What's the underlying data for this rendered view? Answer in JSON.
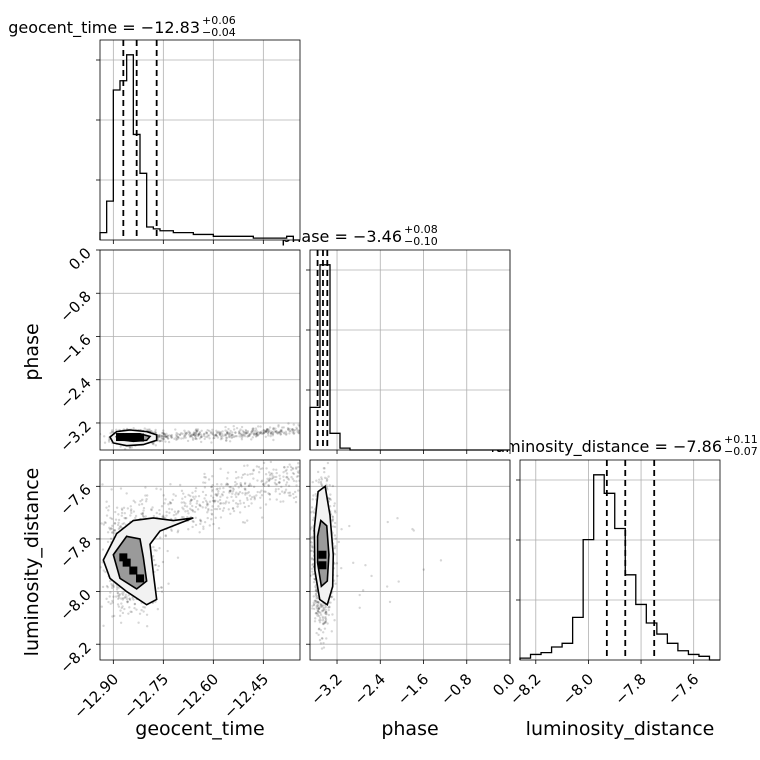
{
  "chart_data": {
    "type": "corner",
    "parameters": [
      {
        "name": "geocent_time",
        "label": "geocent_time",
        "title": "geocent_time = −12.83",
        "title_plus": "+0.06",
        "title_minus": "−0.04",
        "range": [
          -12.94,
          -12.34
        ],
        "ticks": [
          -12.9,
          -12.75,
          -12.6,
          -12.45
        ],
        "tick_labels": [
          "−12.90",
          "−12.75",
          "−12.60",
          "−12.45"
        ],
        "quantiles": [
          -12.87,
          -12.83,
          -12.77
        ],
        "hist_edges": [
          -12.94,
          -12.92,
          -12.9,
          -12.88,
          -12.86,
          -12.84,
          -12.82,
          -12.8,
          -12.78,
          -12.76,
          -12.74,
          -12.72,
          -12.7,
          -12.68,
          -12.66,
          -12.64,
          -12.62,
          -12.6,
          -12.58,
          -12.56,
          -12.54,
          -12.52,
          -12.5,
          -12.48,
          -12.46,
          -12.44,
          -12.42,
          -12.4,
          -12.38,
          -12.36,
          -12.34
        ],
        "hist_counts": [
          4,
          21,
          81,
          86,
          100,
          57,
          36,
          7,
          6,
          5,
          5,
          4,
          4,
          4,
          3,
          3,
          3,
          2,
          2,
          2,
          2,
          2,
          2,
          1,
          1,
          1,
          1,
          1,
          2,
          0
        ]
      },
      {
        "name": "phase",
        "label": "phase",
        "title": "phase = −3.46",
        "title_plus": "+0.08",
        "title_minus": "−0.10",
        "range": [
          -3.7,
          0.0
        ],
        "ticks": [
          -3.2,
          -2.4,
          -1.6,
          -0.8,
          0.0
        ],
        "tick_labels": [
          "−3.2",
          "−2.4",
          "−1.6",
          "−0.8",
          "0.0"
        ],
        "quantiles": [
          -3.56,
          -3.46,
          -3.38
        ],
        "hist_edges": [
          -3.7,
          -3.515,
          -3.33,
          -3.145,
          -2.96,
          -2.775,
          -2.59,
          -2.405,
          -2.22,
          -2.035,
          -1.85,
          -1.665,
          -1.48,
          -1.295,
          -1.11,
          -0.925,
          -0.74,
          -0.555,
          -0.37,
          -0.185,
          0.0
        ],
        "hist_counts": [
          23,
          100,
          9,
          1,
          0,
          0,
          0,
          0,
          0,
          0,
          0,
          0,
          0,
          0,
          0,
          0,
          0,
          0,
          0,
          0
        ]
      },
      {
        "name": "luminosity_distance",
        "label": "luminosity_distance",
        "title": "luminosity_distance = −7.86",
        "title_plus": "+0.11",
        "title_minus": "−0.07",
        "range": [
          -8.26,
          -7.5
        ],
        "ticks": [
          -8.2,
          -8.0,
          -7.8,
          -7.6
        ],
        "tick_labels": [
          "−8.2",
          "−8.0",
          "−7.8",
          "−7.6"
        ],
        "quantiles": [
          -7.93,
          -7.86,
          -7.75
        ],
        "hist_edges": [
          -8.26,
          -8.22,
          -8.18,
          -8.14,
          -8.1,
          -8.06,
          -8.02,
          -7.98,
          -7.94,
          -7.9,
          -7.86,
          -7.82,
          -7.78,
          -7.74,
          -7.7,
          -7.66,
          -7.62,
          -7.58,
          -7.54,
          -7.5
        ],
        "hist_counts": [
          1,
          3,
          4,
          7,
          9,
          23,
          65,
          100,
          90,
          71,
          46,
          30,
          20,
          14,
          9,
          5,
          3,
          2,
          0
        ]
      }
    ],
    "density_contours": [
      {
        "x_param": "geocent_time",
        "y_param": "phase",
        "levels": [
          [
            [
              -12.91,
              -3.46
            ],
            [
              -12.89,
              -3.36
            ],
            [
              -12.85,
              -3.33
            ],
            [
              -12.8,
              -3.36
            ],
            [
              -12.77,
              -3.42
            ],
            [
              -12.77,
              -3.52
            ],
            [
              -12.81,
              -3.6
            ],
            [
              -12.86,
              -3.62
            ],
            [
              -12.9,
              -3.57
            ]
          ],
          [
            [
              -12.89,
              -3.46
            ],
            [
              -12.86,
              -3.4
            ],
            [
              -12.82,
              -3.4
            ],
            [
              -12.79,
              -3.45
            ],
            [
              -12.8,
              -3.52
            ],
            [
              -12.84,
              -3.54
            ],
            [
              -12.88,
              -3.51
            ]
          ]
        ],
        "dense_cells": [
          [
            -12.88,
            -3.46
          ],
          [
            -12.86,
            -3.46
          ],
          [
            -12.84,
            -3.47
          ],
          [
            -12.82,
            -3.47
          ]
        ]
      },
      {
        "x_param": "phase",
        "y_param": "luminosity_distance",
        "levels": [
          [
            [
              -3.55,
              -7.62
            ],
            [
              -3.42,
              -7.6
            ],
            [
              -3.33,
              -7.71
            ],
            [
              -3.27,
              -7.86
            ],
            [
              -3.28,
              -7.98
            ],
            [
              -3.38,
              -8.05
            ],
            [
              -3.52,
              -8.03
            ],
            [
              -3.61,
              -7.92
            ],
            [
              -3.62,
              -7.76
            ]
          ],
          [
            [
              -3.5,
              -7.73
            ],
            [
              -3.39,
              -7.75
            ],
            [
              -3.35,
              -7.86
            ],
            [
              -3.38,
              -7.96
            ],
            [
              -3.49,
              -7.98
            ],
            [
              -3.56,
              -7.89
            ],
            [
              -3.56,
              -7.79
            ]
          ]
        ],
        "dense_cells": [
          [
            -3.47,
            -7.86
          ],
          [
            -3.47,
            -7.9
          ]
        ]
      },
      {
        "x_param": "geocent_time",
        "y_param": "luminosity_distance",
        "levels": [
          [
            [
              -12.93,
              -7.88
            ],
            [
              -12.89,
              -7.78
            ],
            [
              -12.84,
              -7.73
            ],
            [
              -12.78,
              -7.72
            ],
            [
              -12.72,
              -7.73
            ],
            [
              -12.66,
              -7.72
            ],
            [
              -12.7,
              -7.74
            ],
            [
              -12.76,
              -7.77
            ],
            [
              -12.79,
              -7.82
            ],
            [
              -12.78,
              -7.93
            ],
            [
              -12.77,
              -8.03
            ],
            [
              -12.8,
              -8.05
            ],
            [
              -12.86,
              -8.0
            ],
            [
              -12.91,
              -7.95
            ]
          ],
          [
            [
              -12.9,
              -7.86
            ],
            [
              -12.86,
              -7.79
            ],
            [
              -12.82,
              -7.8
            ],
            [
              -12.81,
              -7.87
            ],
            [
              -12.8,
              -7.96
            ],
            [
              -12.83,
              -7.99
            ],
            [
              -12.88,
              -7.95
            ]
          ]
        ],
        "dense_cells": [
          [
            -12.87,
            -7.87
          ],
          [
            -12.86,
            -7.89
          ],
          [
            -12.84,
            -7.92
          ],
          [
            -12.82,
            -7.95
          ]
        ]
      }
    ],
    "grid": true
  }
}
